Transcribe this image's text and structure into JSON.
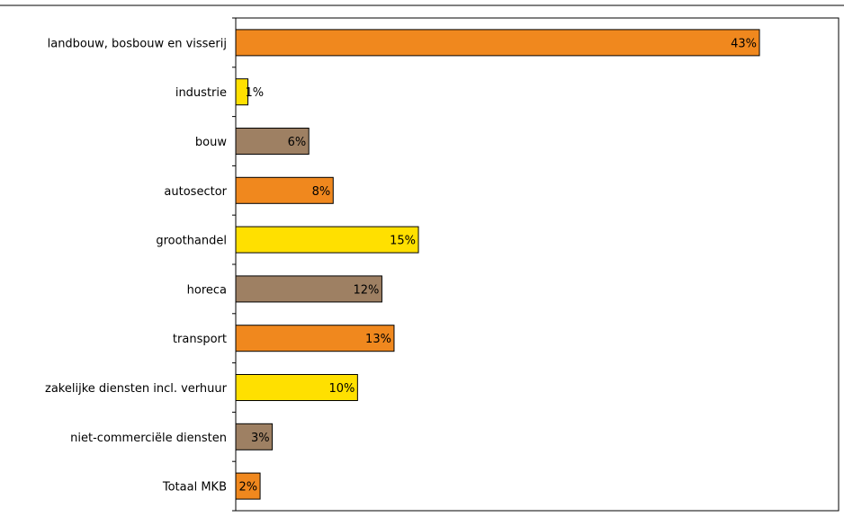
{
  "chart_data": {
    "type": "bar",
    "orientation": "horizontal",
    "categories": [
      "landbouw, bosbouw en visserij",
      "industrie",
      "bouw",
      "autosector",
      "groothandel",
      "horeca",
      "transport",
      "zakelijke diensten incl. verhuur",
      "niet-commerciële diensten",
      "Totaal MKB"
    ],
    "values": [
      43,
      1,
      6,
      8,
      15,
      12,
      13,
      10,
      3,
      2
    ],
    "value_labels": [
      "43%",
      "1%",
      "6%",
      "8%",
      "15%",
      "12%",
      "13%",
      "10%",
      "3%",
      "2%"
    ],
    "bar_colors": [
      "#F0881E",
      "#FFE000",
      "#9E8063",
      "#F0881E",
      "#FFE000",
      "#9E8063",
      "#F0881E",
      "#FFE000",
      "#9E8063",
      "#F0881E"
    ],
    "xlim": [
      0,
      49.5
    ],
    "grid": false,
    "legend": "none"
  }
}
